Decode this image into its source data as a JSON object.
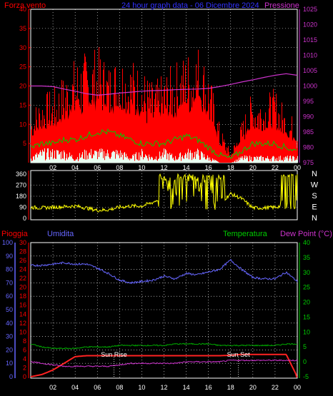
{
  "header": {
    "left_label": "Forza vento",
    "title": "24 hour graph data - 06 Dicembre 2024",
    "right_label": "Pressione"
  },
  "lower_header": {
    "pioggia": "Pioggia",
    "umidita": "Umidita",
    "temperatura": "Temperatura",
    "dewpoint": "Dew Point (°C)"
  },
  "direction_labels": [
    "N",
    "W",
    "S",
    "E",
    "N"
  ],
  "annotations": {
    "sunrise": "Sun Rise",
    "sunset": "Sun Set"
  },
  "colors": {
    "background": "#000000",
    "wind_area": "#ff0000",
    "wind_avg": "#00cc00",
    "wind_low": "#e8fff0",
    "pressure": "#cc33cc",
    "direction": "#ffff00",
    "humidity": "#6666ff",
    "temperature": "#00aa00",
    "dewpoint": "#cc33cc",
    "rain": "#ff2222",
    "grid": "#ffffff",
    "axis_left": "#ff0000",
    "axis_right": "#cc33cc",
    "axis_rain": "#ff0000",
    "axis_hum": "#6666ff",
    "axis_temp": "#00cc00"
  },
  "x_ticks": [
    "02",
    "04",
    "06",
    "08",
    "10",
    "12",
    "14",
    "16",
    "18",
    "20",
    "22",
    "00"
  ],
  "chart_data": [
    {
      "type": "area",
      "title": "24 hour graph data - 06 Dicembre 2024",
      "ylabel": "Forza vento",
      "y2label": "Pressione",
      "xlim": [
        0,
        24
      ],
      "ylim": [
        0,
        40
      ],
      "y2lim": [
        975,
        1025
      ],
      "yticks": [
        "5",
        "10",
        "15",
        "20",
        "25",
        "30",
        "35",
        "40"
      ],
      "y2ticks": [
        "975",
        "980",
        "985",
        "990",
        "995",
        "1000",
        "1005",
        "1010",
        "1015",
        "1020",
        "1025"
      ],
      "grid": true,
      "x": [
        0,
        1,
        2,
        3,
        4,
        5,
        6,
        7,
        8,
        9,
        10,
        11,
        12,
        13,
        14,
        15,
        16,
        17,
        18,
        19,
        20,
        21,
        22,
        23,
        24
      ],
      "series": [
        {
          "name": "Forza vento",
          "values": [
            10,
            13,
            14,
            17,
            20,
            21,
            22,
            19,
            21,
            20,
            18,
            15,
            17,
            19,
            21,
            23,
            18,
            7,
            2,
            8,
            14,
            13,
            14,
            10,
            8
          ]
        },
        {
          "name": "",
          "values": [
            4,
            5,
            5,
            6,
            6,
            7,
            8,
            8,
            7,
            6,
            5,
            5,
            5,
            6,
            7,
            6,
            4,
            2,
            1,
            3,
            5,
            5,
            5,
            4,
            3
          ]
        },
        {
          "name": "",
          "values": [
            1,
            2,
            2,
            2,
            1,
            2,
            2,
            2,
            2,
            1,
            2,
            1,
            2,
            1,
            2,
            2,
            1,
            0,
            0,
            1,
            1,
            1,
            1,
            1,
            1
          ]
        },
        {
          "name": "Pressione",
          "values": [
            1000,
            1000,
            999.8,
            999,
            998.3,
            997.5,
            997,
            997.3,
            997.7,
            998,
            998.3,
            998.5,
            998.6,
            998.8,
            998.9,
            999,
            999.2,
            999.8,
            1000.5,
            1001.3,
            1002,
            1002.8,
            1003.5,
            1004,
            1003.5
          ]
        }
      ]
    },
    {
      "type": "line",
      "ylabel": "",
      "xlim": [
        0,
        24
      ],
      "ylim": [
        0,
        360
      ],
      "yticks": [
        "0",
        "90",
        "180",
        "270",
        "360"
      ],
      "grid": true,
      "x": [
        0,
        1,
        2,
        3,
        4,
        5,
        6,
        7,
        8,
        9,
        10,
        11,
        12,
        13,
        14,
        15,
        16,
        17,
        18,
        19,
        20,
        21,
        22,
        23,
        24
      ],
      "series": [
        {
          "name": "",
          "values": [
            90,
            85,
            90,
            95,
            100,
            85,
            65,
            70,
            90,
            100,
            100,
            130,
            180,
            220,
            260,
            230,
            160,
            120,
            200,
            160,
            85,
            85,
            90,
            110,
            200
          ]
        }
      ]
    },
    {
      "type": "line",
      "xlim": [
        0,
        24
      ],
      "ylim": [
        0,
        100
      ],
      "yticks": [
        "0",
        "10",
        "20",
        "30",
        "40",
        "50",
        "60",
        "70",
        "80",
        "90",
        "100"
      ],
      "rain_ticks": [
        "0",
        "2",
        "4",
        "6",
        "8",
        "10",
        "12",
        "14",
        "16",
        "18",
        "20",
        "22",
        "24",
        "26",
        "28",
        "30"
      ],
      "temp_ticks": [
        "-5",
        "0",
        "5",
        "10",
        "15",
        "20",
        "25",
        "30",
        "35",
        "40"
      ],
      "grid": true,
      "x": [
        0,
        1,
        2,
        3,
        4,
        5,
        6,
        7,
        8,
        9,
        10,
        11,
        12,
        13,
        14,
        15,
        16,
        17,
        18,
        19,
        20,
        21,
        22,
        23,
        24
      ],
      "series": [
        {
          "name": "Pioggia",
          "axis": "rain",
          "values": [
            0,
            0.5,
            1.5,
            3,
            4.5,
            4.7,
            4.7,
            4.7,
            4.7,
            4.7,
            4.7,
            4.7,
            4.7,
            4.7,
            4.7,
            4.7,
            4.7,
            4.7,
            4.8,
            5,
            5,
            5,
            5,
            5,
            0
          ]
        },
        {
          "name": "Umidita",
          "axis": "hum",
          "values": [
            83,
            83,
            84,
            85,
            84,
            84,
            81,
            77,
            72,
            70,
            71,
            72,
            75,
            73,
            77,
            76,
            78,
            80,
            87,
            80,
            74,
            73,
            73,
            78,
            71
          ]
        },
        {
          "name": "Temperatura",
          "axis": "temp",
          "values": [
            6,
            5,
            4.5,
            4.5,
            4.5,
            5,
            5,
            5,
            5.5,
            5.5,
            5.5,
            5.5,
            5.5,
            6,
            6,
            6,
            6,
            5.5,
            5.5,
            5.5,
            5.5,
            5.5,
            5.5,
            6,
            6
          ]
        },
        {
          "name": "Dew Point (°C)",
          "axis": "temp",
          "values": [
            0,
            -0.5,
            -1,
            -1.5,
            -1.5,
            -1.5,
            -1.5,
            -1.5,
            -1,
            -0.5,
            -0.5,
            -0.5,
            -0.5,
            -0.5,
            0,
            0,
            0,
            0,
            0.5,
            0.5,
            0.5,
            0.5,
            0.5,
            0.5,
            0.5
          ]
        }
      ],
      "markers": [
        {
          "label": "Sun Rise",
          "x": 7.5
        },
        {
          "label": "Sun Set",
          "x": 18.7
        }
      ]
    }
  ]
}
